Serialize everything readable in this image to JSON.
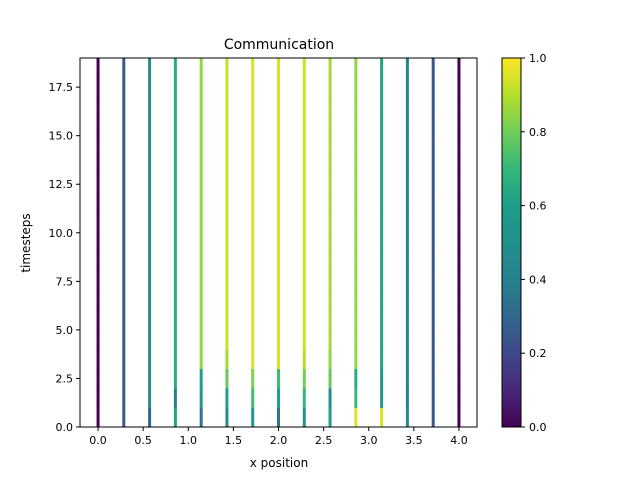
{
  "chart_data": {
    "type": "heatmap",
    "title": "Communication",
    "xlabel": "x position",
    "ylabel": "timesteps",
    "xlim": [
      -0.2,
      4.2
    ],
    "ylim": [
      0,
      19
    ],
    "xticks": [
      "0.0",
      "0.5",
      "1.0",
      "1.5",
      "2.0",
      "2.5",
      "3.0",
      "3.5",
      "4.0"
    ],
    "yticks": [
      "0.0",
      "2.5",
      "5.0",
      "7.5",
      "10.0",
      "12.5",
      "15.0",
      "17.5"
    ],
    "colorbar": {
      "colormap": "viridis",
      "range": [
        0,
        1
      ],
      "ticks": [
        "0.0",
        "0.2",
        "0.4",
        "0.6",
        "0.8",
        "1.0"
      ]
    },
    "grid": false,
    "x_positions": [
      0.0,
      0.2857,
      0.5714,
      0.8571,
      1.1429,
      1.4286,
      1.7143,
      2.0,
      2.2857,
      2.5714,
      2.8571,
      3.1429,
      3.4286,
      3.7143,
      4.0
    ],
    "columns": [
      {
        "x": 0.0,
        "values": [
          0,
          0,
          0,
          0,
          0,
          0,
          0,
          0,
          0,
          0,
          0,
          0,
          0,
          0,
          0,
          0,
          0,
          0,
          0
        ]
      },
      {
        "x": 0.2857,
        "values": [
          0.25,
          0.25,
          0.25,
          0.25,
          0.25,
          0.25,
          0.25,
          0.25,
          0.25,
          0.25,
          0.25,
          0.25,
          0.25,
          0.25,
          0.25,
          0.25,
          0.25,
          0.25,
          0.25
        ]
      },
      {
        "x": 0.5714,
        "values": [
          0.3,
          0.45,
          0.45,
          0.45,
          0.45,
          0.45,
          0.45,
          0.45,
          0.45,
          0.45,
          0.45,
          0.45,
          0.45,
          0.45,
          0.45,
          0.45,
          0.45,
          0.45,
          0.45
        ]
      },
      {
        "x": 0.8571,
        "values": [
          0.62,
          0.4,
          0.65,
          0.65,
          0.65,
          0.65,
          0.65,
          0.65,
          0.65,
          0.65,
          0.65,
          0.65,
          0.65,
          0.65,
          0.65,
          0.65,
          0.65,
          0.65,
          0.65
        ]
      },
      {
        "x": 1.1429,
        "values": [
          0.35,
          0.55,
          0.6,
          0.85,
          0.85,
          0.85,
          0.85,
          0.85,
          0.85,
          0.85,
          0.85,
          0.85,
          0.85,
          0.85,
          0.85,
          0.85,
          0.85,
          0.85,
          0.85
        ]
      },
      {
        "x": 1.4286,
        "values": [
          0.45,
          0.6,
          0.78,
          0.88,
          0.93,
          0.93,
          0.93,
          0.93,
          0.93,
          0.93,
          0.93,
          0.93,
          0.93,
          0.93,
          0.93,
          0.93,
          0.93,
          0.93,
          0.93
        ]
      },
      {
        "x": 1.7143,
        "values": [
          0.55,
          0.72,
          0.82,
          0.95,
          0.95,
          0.95,
          0.95,
          0.95,
          0.95,
          0.95,
          0.95,
          0.95,
          0.95,
          0.95,
          0.95,
          0.95,
          0.95,
          0.95,
          0.95
        ]
      },
      {
        "x": 2.0,
        "values": [
          0.35,
          0.6,
          0.72,
          0.95,
          0.95,
          0.95,
          0.95,
          0.95,
          0.95,
          0.95,
          0.95,
          0.95,
          0.95,
          0.95,
          0.95,
          0.95,
          0.95,
          0.95,
          0.95
        ]
      },
      {
        "x": 2.2857,
        "values": [
          0.5,
          0.7,
          0.8,
          0.9,
          0.93,
          0.93,
          0.93,
          0.93,
          0.93,
          0.93,
          0.93,
          0.93,
          0.93,
          0.93,
          0.93,
          0.93,
          0.93,
          0.93,
          0.93
        ]
      },
      {
        "x": 2.5714,
        "values": [
          0.6,
          0.45,
          0.78,
          0.85,
          0.88,
          0.88,
          0.88,
          0.88,
          0.88,
          0.88,
          0.88,
          0.88,
          0.88,
          0.88,
          0.88,
          0.88,
          0.88,
          0.88,
          0.88
        ]
      },
      {
        "x": 2.8571,
        "values": [
          0.95,
          0.7,
          0.65,
          0.85,
          0.85,
          0.85,
          0.85,
          0.85,
          0.85,
          0.85,
          0.85,
          0.85,
          0.85,
          0.85,
          0.85,
          0.85,
          0.85,
          0.85,
          0.85
        ]
      },
      {
        "x": 3.1429,
        "values": [
          0.95,
          0.55,
          0.55,
          0.62,
          0.62,
          0.62,
          0.62,
          0.62,
          0.62,
          0.62,
          0.62,
          0.62,
          0.62,
          0.62,
          0.62,
          0.62,
          0.62,
          0.62,
          0.62
        ]
      },
      {
        "x": 3.4286,
        "values": [
          0.45,
          0.4,
          0.42,
          0.42,
          0.42,
          0.42,
          0.42,
          0.42,
          0.42,
          0.42,
          0.42,
          0.42,
          0.42,
          0.42,
          0.42,
          0.42,
          0.42,
          0.42,
          0.42
        ]
      },
      {
        "x": 3.7143,
        "values": [
          0.25,
          0.25,
          0.25,
          0.25,
          0.25,
          0.25,
          0.25,
          0.25,
          0.25,
          0.25,
          0.25,
          0.25,
          0.25,
          0.25,
          0.25,
          0.25,
          0.25,
          0.25,
          0.25
        ]
      },
      {
        "x": 4.0,
        "values": [
          0,
          0,
          0,
          0,
          0,
          0,
          0,
          0,
          0,
          0,
          0,
          0,
          0,
          0,
          0,
          0,
          0,
          0,
          0
        ]
      }
    ]
  }
}
